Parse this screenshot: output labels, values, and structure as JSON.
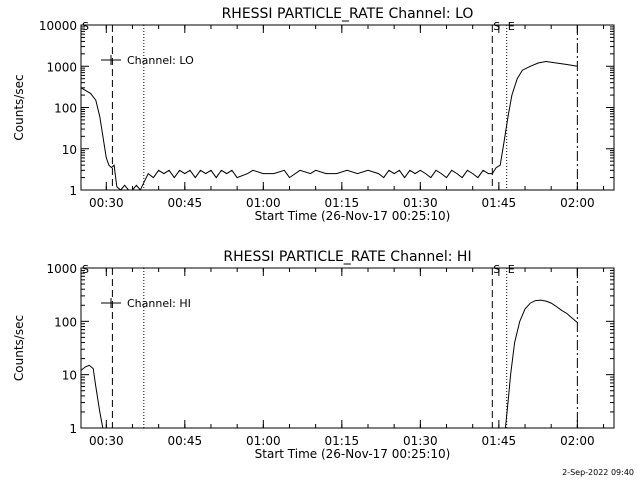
{
  "footer_date": "2-Sep-2022 09:40",
  "chart_data": [
    {
      "type": "line",
      "title": "RHESSI PARTICLE_RATE Channel: LO",
      "xlabel": "Start Time (26-Nov-17 00:25:10)",
      "ylabel": "Counts/sec",
      "y_scale": "log",
      "ylim": [
        1,
        10000
      ],
      "y_ticks": [
        "1",
        "10",
        "100",
        "1000",
        "10000"
      ],
      "xlim": [
        "00:25:10",
        "02:07:00"
      ],
      "x_ticks": [
        "00:30",
        "00:45",
        "01:00",
        "01:15",
        "01:30",
        "01:45",
        "02:00"
      ],
      "legend": "Channel: LO",
      "legend_position": "top-left",
      "markers": [
        {
          "label": "S",
          "time": "00:25:10",
          "style": "corner-label"
        },
        {
          "label": "",
          "time": "00:31:10",
          "style": "dashed"
        },
        {
          "label": "",
          "time": "00:37:10",
          "style": "dotted"
        },
        {
          "label": "S",
          "time": "01:43:45",
          "style": "dashed"
        },
        {
          "label": "E",
          "time": "01:46:30",
          "style": "dotted"
        },
        {
          "label": "",
          "time": "02:00:00",
          "style": "dash-dot"
        }
      ],
      "series": [
        {
          "x": [
            "00:25:10",
            "00:27:00",
            "00:28:00",
            "00:28:45",
            "00:29:30",
            "00:30:00",
            "00:30:30",
            "00:31:00",
            "00:31:30",
            "00:32:00",
            "00:32:45",
            "00:33:30",
            "00:34:15",
            "00:35:00",
            "00:35:45",
            "00:36:30",
            "00:37:10",
            "00:38:00",
            "00:39:00",
            "00:40:00",
            "00:41:00",
            "00:42:00",
            "00:43:00",
            "00:44:00",
            "00:45:00",
            "00:46:00",
            "00:47:00",
            "00:48:00",
            "00:49:00",
            "00:50:00",
            "00:51:00",
            "00:52:00",
            "00:53:00",
            "00:54:00",
            "00:55:00",
            "00:57:00",
            "00:58:00",
            "01:00:00",
            "01:02:00",
            "01:04:00",
            "01:05:00",
            "01:07:00",
            "01:09:00",
            "01:10:00",
            "01:12:00",
            "01:14:00",
            "01:16:00",
            "01:18:00",
            "01:20:00",
            "01:22:00",
            "01:23:00",
            "01:24:00",
            "01:25:00",
            "01:26:00",
            "01:27:00",
            "01:28:00",
            "01:29:00",
            "01:30:00",
            "01:31:00",
            "01:32:00",
            "01:33:00",
            "01:34:00",
            "01:35:00",
            "01:36:00",
            "01:37:00",
            "01:38:00",
            "01:39:00",
            "01:40:00",
            "01:41:00",
            "01:42:00",
            "01:43:00",
            "01:43:45",
            "01:44:30",
            "01:45:15",
            "01:46:00",
            "01:46:45",
            "01:47:30",
            "01:48:30",
            "01:49:30",
            "01:51:00",
            "01:52:30",
            "01:54:00",
            "01:56:00",
            "01:58:00",
            "02:00:00"
          ],
          "y": [
            300,
            220,
            150,
            60,
            15,
            6,
            4,
            3.5,
            4,
            1.2,
            1,
            1.3,
            1,
            1,
            1.3,
            1,
            1.5,
            2.5,
            2,
            3,
            2.5,
            3,
            2,
            3,
            2.5,
            3,
            2,
            3,
            2.5,
            3,
            2,
            3,
            2.5,
            3,
            2,
            2.5,
            3,
            2.5,
            2.5,
            3,
            2,
            3,
            2.5,
            3,
            2.5,
            2.5,
            3,
            2.5,
            3,
            2.5,
            2,
            3,
            2.5,
            3,
            2,
            3,
            2.5,
            3,
            2.5,
            2,
            3,
            2.5,
            2,
            3,
            2.5,
            2,
            3,
            2.5,
            2,
            3,
            2.5,
            2.5,
            3.5,
            4,
            15,
            60,
            200,
            500,
            800,
            1000,
            1200,
            1300,
            1200,
            1100,
            1000
          ]
        }
      ]
    },
    {
      "type": "line",
      "title": "RHESSI PARTICLE_RATE Channel: HI",
      "xlabel": "Start Time (26-Nov-17 00:25:10)",
      "ylabel": "Counts/sec",
      "y_scale": "log",
      "ylim": [
        1,
        1000
      ],
      "y_ticks": [
        "1",
        "10",
        "100",
        "1000"
      ],
      "xlim": [
        "00:25:10",
        "02:07:00"
      ],
      "x_ticks": [
        "00:30",
        "00:45",
        "01:00",
        "01:15",
        "01:30",
        "01:45",
        "02:00"
      ],
      "legend": "Channel: HI",
      "legend_position": "top-left",
      "markers": [
        {
          "label": "S",
          "time": "00:25:10",
          "style": "corner-label"
        },
        {
          "label": "",
          "time": "00:31:10",
          "style": "dashed"
        },
        {
          "label": "",
          "time": "00:37:10",
          "style": "dotted"
        },
        {
          "label": "S",
          "time": "01:43:45",
          "style": "dashed"
        },
        {
          "label": "E",
          "time": "01:46:30",
          "style": "dotted"
        },
        {
          "label": "",
          "time": "02:00:00",
          "style": "dash-dot"
        }
      ],
      "series": [
        {
          "segments": [
            {
              "x": [
                "00:25:10",
                "00:26:00",
                "00:26:45",
                "00:27:30",
                "00:28:00",
                "00:28:45",
                "00:29:20"
              ],
              "y": [
                12,
                14,
                15,
                13,
                6,
                2,
                1
              ]
            },
            {
              "x": [
                "01:46:15",
                "01:46:45",
                "01:47:15",
                "01:48:00",
                "01:49:00",
                "01:50:00",
                "01:51:00",
                "01:52:00",
                "01:53:00",
                "01:54:00",
                "01:55:00",
                "01:56:00",
                "01:57:00",
                "01:58:00",
                "01:59:00",
                "02:00:00"
              ],
              "y": [
                1,
                3,
                10,
                40,
                100,
                170,
                220,
                245,
                250,
                240,
                220,
                190,
                160,
                140,
                115,
                95
              ]
            }
          ]
        }
      ]
    }
  ]
}
